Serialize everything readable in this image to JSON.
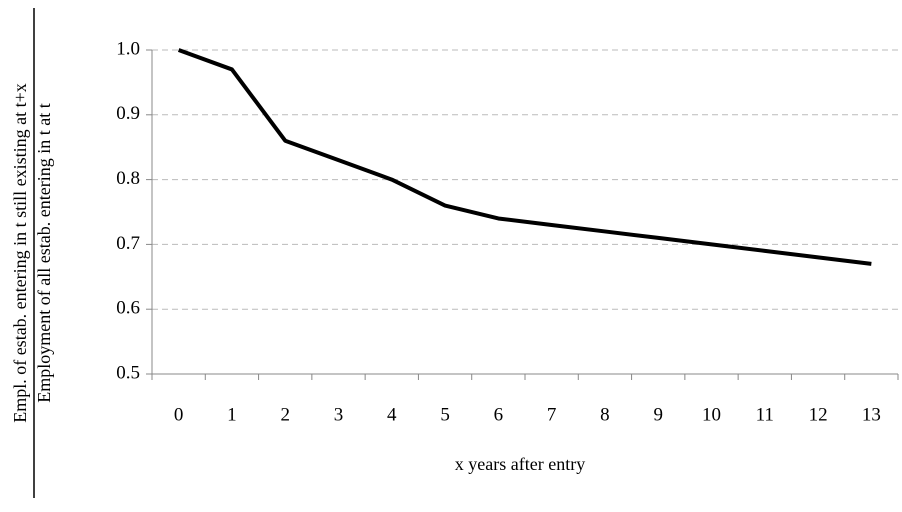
{
  "chart_data": {
    "type": "line",
    "y_label_numerator": "Empl. of estab. entering in t still existing at t+x",
    "y_label_denominator": "Employment of  all estab. entering in t at t",
    "x_label": "x years after entry",
    "categories": [
      "0",
      "1",
      "2",
      "3",
      "4",
      "5",
      "6",
      "7",
      "8",
      "9",
      "10",
      "11",
      "12",
      "13"
    ],
    "values": [
      1.0,
      0.97,
      0.86,
      0.83,
      0.8,
      0.76,
      0.74,
      0.73,
      0.72,
      0.71,
      0.7,
      0.69,
      0.68,
      0.67
    ],
    "color": "#000000",
    "ylim": [
      0.5,
      1.0
    ],
    "yticks": [
      0.5,
      0.6,
      0.7,
      0.8,
      0.9,
      {
        "value": 1.0,
        "label": "1.0"
      }
    ],
    "grid": true
  }
}
